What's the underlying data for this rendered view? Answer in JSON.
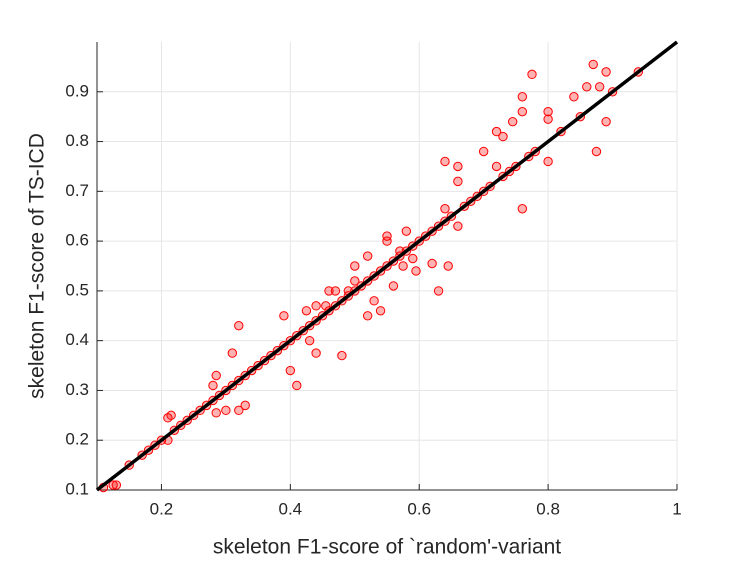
{
  "chart_data": {
    "type": "scatter",
    "xlabel": "skeleton F1-score of `random'-variant",
    "ylabel": "skeleton F1-score of TS-ICD",
    "xlim": [
      0.1,
      1
    ],
    "ylim": [
      0.1,
      1
    ],
    "xticks": [
      0.2,
      0.4,
      0.6,
      0.8,
      1
    ],
    "yticks": [
      0.1,
      0.2,
      0.3,
      0.4,
      0.5,
      0.6,
      0.7,
      0.8,
      0.9
    ],
    "grid": true,
    "identity_line": true,
    "identity_color": "#000000",
    "color": "#ff0000",
    "x": [
      0.11,
      0.125,
      0.13,
      0.15,
      0.17,
      0.18,
      0.19,
      0.2,
      0.21,
      0.21,
      0.215,
      0.22,
      0.23,
      0.24,
      0.25,
      0.26,
      0.27,
      0.28,
      0.28,
      0.285,
      0.285,
      0.29,
      0.3,
      0.3,
      0.31,
      0.31,
      0.32,
      0.32,
      0.32,
      0.33,
      0.33,
      0.34,
      0.35,
      0.36,
      0.37,
      0.38,
      0.39,
      0.39,
      0.4,
      0.4,
      0.41,
      0.41,
      0.42,
      0.43,
      0.43,
      0.44,
      0.44,
      0.44,
      0.425,
      0.45,
      0.455,
      0.46,
      0.46,
      0.47,
      0.47,
      0.48,
      0.48,
      0.49,
      0.49,
      0.5,
      0.5,
      0.5,
      0.51,
      0.52,
      0.52,
      0.52,
      0.53,
      0.53,
      0.54,
      0.54,
      0.55,
      0.55,
      0.55,
      0.56,
      0.56,
      0.57,
      0.57,
      0.575,
      0.58,
      0.58,
      0.59,
      0.59,
      0.595,
      0.6,
      0.61,
      0.62,
      0.62,
      0.63,
      0.63,
      0.64,
      0.64,
      0.64,
      0.645,
      0.65,
      0.66,
      0.66,
      0.66,
      0.67,
      0.68,
      0.69,
      0.7,
      0.7,
      0.71,
      0.72,
      0.72,
      0.73,
      0.73,
      0.74,
      0.745,
      0.75,
      0.76,
      0.76,
      0.76,
      0.77,
      0.775,
      0.78,
      0.8,
      0.8,
      0.8,
      0.82,
      0.84,
      0.85,
      0.86,
      0.87,
      0.875,
      0.88,
      0.89,
      0.89,
      0.9,
      0.94
    ],
    "values": [
      0.105,
      0.11,
      0.11,
      0.15,
      0.17,
      0.18,
      0.19,
      0.2,
      0.245,
      0.2,
      0.25,
      0.22,
      0.23,
      0.24,
      0.25,
      0.26,
      0.27,
      0.28,
      0.31,
      0.33,
      0.255,
      0.29,
      0.26,
      0.3,
      0.375,
      0.31,
      0.43,
      0.26,
      0.32,
      0.27,
      0.33,
      0.34,
      0.35,
      0.36,
      0.37,
      0.38,
      0.45,
      0.39,
      0.34,
      0.4,
      0.31,
      0.41,
      0.42,
      0.4,
      0.43,
      0.375,
      0.47,
      0.44,
      0.46,
      0.45,
      0.47,
      0.5,
      0.46,
      0.5,
      0.47,
      0.37,
      0.48,
      0.5,
      0.49,
      0.55,
      0.52,
      0.5,
      0.51,
      0.57,
      0.45,
      0.52,
      0.48,
      0.53,
      0.46,
      0.54,
      0.61,
      0.6,
      0.55,
      0.51,
      0.56,
      0.57,
      0.58,
      0.55,
      0.62,
      0.58,
      0.565,
      0.59,
      0.54,
      0.6,
      0.61,
      0.555,
      0.62,
      0.5,
      0.63,
      0.76,
      0.665,
      0.64,
      0.55,
      0.65,
      0.75,
      0.72,
      0.63,
      0.67,
      0.68,
      0.69,
      0.78,
      0.7,
      0.71,
      0.75,
      0.82,
      0.81,
      0.73,
      0.74,
      0.84,
      0.75,
      0.89,
      0.86,
      0.665,
      0.77,
      0.935,
      0.78,
      0.86,
      0.845,
      0.76,
      0.82,
      0.89,
      0.85,
      0.91,
      0.955,
      0.78,
      0.91,
      0.94,
      0.84,
      0.9,
      0.94
    ]
  }
}
